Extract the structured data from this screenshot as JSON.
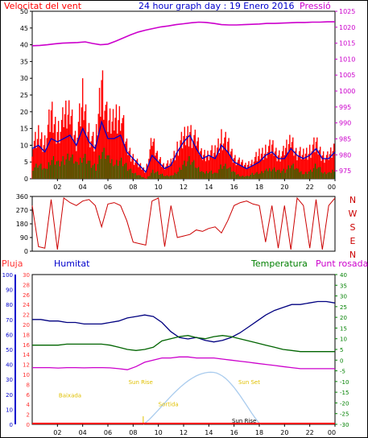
{
  "colors": {
    "background": "#ffffff",
    "frame": "#000000",
    "title": "#0000cc",
    "wind": "#ff0000",
    "wind_avg": "#0000cc",
    "wind_gust": "#008000",
    "pressure": "#cc00cc",
    "direction": "#cc0000",
    "humidity": "#000080",
    "temperature": "#006400",
    "dewpoint": "#cc00cc",
    "rain": "#ff0000",
    "solar": "#aaccee",
    "sun_labels": "#e0c000",
    "rain_axis": "#ff3333",
    "hum_axis": "#0000cc"
  },
  "chart_data": [
    {
      "type": "line",
      "panel": "wind_pressure",
      "title": "24 hour graph day : 19 Enero 2016",
      "left_label": "Velocitat del vent",
      "right_label": "Pressió",
      "y_left_ticks": [
        "0",
        "5",
        "10",
        "15",
        "20",
        "25",
        "30",
        "35",
        "40",
        "45",
        "50"
      ],
      "y_left_range": [
        0,
        50
      ],
      "y_right_ticks": [
        "975",
        "980",
        "985",
        "990",
        "995",
        "1000",
        "1005",
        "1010",
        "1015",
        "1020",
        "1025"
      ],
      "y_right_range": [
        972.5,
        1025
      ],
      "x_ticks": [
        "02",
        "04",
        "06",
        "08",
        "10",
        "12",
        "14",
        "16",
        "18",
        "20",
        "22",
        "00"
      ],
      "pressure": [
        1014.2,
        1014.3,
        1014.5,
        1014.8,
        1015.0,
        1015.1,
        1015.2,
        1015.4,
        1014.9,
        1014.5,
        1014.7,
        1015.6,
        1016.6,
        1017.6,
        1018.5,
        1019.1,
        1019.6,
        1020.1,
        1020.4,
        1020.8,
        1021.1,
        1021.4,
        1021.6,
        1021.5,
        1021.2,
        1020.8,
        1020.7,
        1020.7,
        1020.8,
        1020.9,
        1021.0,
        1021.2,
        1021.2,
        1021.3,
        1021.4,
        1021.5,
        1021.5,
        1021.6,
        1021.6,
        1021.7,
        1021.7
      ],
      "wind_speed_envelope": [
        12,
        16,
        14,
        24,
        18,
        22,
        26,
        15,
        30,
        18,
        12,
        38,
        20,
        23,
        26,
        12,
        8,
        5,
        3,
        14,
        8,
        5,
        6,
        12,
        15,
        18,
        14,
        9,
        10,
        10,
        16,
        13,
        8,
        6,
        5,
        7,
        9,
        11,
        12,
        9,
        10,
        15,
        10,
        9,
        11,
        13,
        9,
        8,
        12
      ],
      "wind_avg": [
        9,
        10,
        8,
        12,
        11,
        12,
        13,
        10,
        15,
        11,
        9,
        17,
        12,
        12,
        13,
        8,
        6,
        4,
        2,
        7,
        5,
        3,
        4,
        8,
        11,
        13,
        9,
        6,
        7,
        6,
        10,
        8,
        5,
        4,
        3,
        4,
        5,
        7,
        8,
        6,
        6,
        9,
        7,
        6,
        7,
        9,
        6,
        6,
        8
      ],
      "wind_gust_low": [
        4,
        5,
        3,
        8,
        6,
        7,
        8,
        5,
        9,
        6,
        4,
        10,
        7,
        6,
        7,
        4,
        2,
        1,
        0,
        3,
        2,
        1,
        1,
        3,
        6,
        7,
        4,
        2,
        3,
        2,
        5,
        4,
        2,
        1,
        1,
        2,
        2,
        3,
        4,
        3,
        3,
        5,
        3,
        2,
        3,
        5,
        2,
        2,
        4
      ]
    },
    {
      "type": "scatter",
      "panel": "wind_direction",
      "y_left_ticks": [
        "0",
        "90",
        "180",
        "270",
        "360"
      ],
      "y_left_range": [
        0,
        360
      ],
      "y_right_labels": [
        "N",
        "W",
        "S",
        "E",
        "N"
      ],
      "direction": [
        300,
        30,
        20,
        340,
        10,
        350,
        320,
        300,
        330,
        340,
        300,
        160,
        310,
        320,
        300,
        200,
        60,
        50,
        40,
        330,
        350,
        30,
        300,
        90,
        100,
        110,
        140,
        130,
        150,
        160,
        120,
        200,
        300,
        320,
        330,
        310,
        300,
        60,
        300,
        20,
        300,
        10,
        350,
        300,
        20,
        340,
        10,
        300,
        350
      ]
    },
    {
      "type": "line",
      "panel": "humidity_temperature",
      "labels": {
        "rain": "Pluja",
        "humidity": "Humitat",
        "temperature": "Temperatura",
        "dewpoint": "Punt rosada"
      },
      "rain_ticks": [
        "0",
        "2",
        "4",
        "6",
        "8",
        "10",
        "12",
        "14",
        "16",
        "18",
        "20",
        "22",
        "24",
        "26",
        "28",
        "30"
      ],
      "rain_range": [
        0,
        30
      ],
      "hum_ticks": [
        "0",
        "10",
        "20",
        "30",
        "40",
        "50",
        "60",
        "70",
        "80",
        "90",
        "100"
      ],
      "hum_range": [
        0,
        100
      ],
      "temp_ticks": [
        "-30",
        "-25",
        "-20",
        "-15",
        "-10",
        "-5",
        "0",
        "5",
        "10",
        "15",
        "20",
        "25",
        "30",
        "35",
        "40"
      ],
      "temp_range": [
        -30,
        40
      ],
      "x_ticks": [
        "02",
        "04",
        "06",
        "08",
        "10",
        "12",
        "14",
        "16",
        "18",
        "20",
        "22",
        "00"
      ],
      "humidity": [
        70,
        70,
        69,
        69,
        68,
        68,
        67,
        67,
        67,
        68,
        69,
        71,
        72,
        73,
        72,
        68,
        62,
        58,
        57,
        58,
        56,
        55,
        56,
        58,
        61,
        65,
        69,
        73,
        76,
        78,
        80,
        80,
        81,
        82,
        82,
        81
      ],
      "temperature": [
        7,
        7,
        7,
        7,
        7.5,
        7.5,
        7.5,
        7.5,
        7.5,
        7,
        6,
        5,
        4.5,
        5,
        6,
        9,
        10,
        11,
        11.5,
        10.5,
        10,
        11,
        11.5,
        11,
        10,
        9,
        8,
        7,
        6,
        5,
        4.5,
        4,
        4,
        4,
        4,
        4
      ],
      "dewpoint": [
        -3.5,
        -3.5,
        -3.5,
        -3.7,
        -3.5,
        -3.5,
        -3.6,
        -3.5,
        -3.5,
        -3.6,
        -4,
        -4.5,
        -3,
        -1,
        0,
        1,
        1,
        1.5,
        1.5,
        1,
        1,
        1,
        0.5,
        0,
        -0.5,
        -1,
        -1.5,
        -2,
        -2.5,
        -3,
        -3.5,
        -4,
        -4,
        -4,
        -4,
        -4
      ],
      "rain": [
        0,
        0,
        0,
        0,
        0,
        0,
        0,
        0,
        0,
        0,
        0,
        0,
        0,
        0,
        0,
        0,
        0,
        0,
        0,
        0,
        0,
        0,
        0,
        0,
        0,
        0,
        0,
        0,
        0,
        0,
        0,
        0,
        0,
        0,
        0,
        0
      ],
      "solar_peak_hour": 14.2,
      "solar_start_hour": 8.8,
      "solar_end_hour": 18.1,
      "solar_peak_humidity_scale": 58,
      "sun_labels": [
        {
          "text": "Baixada",
          "hour": 3.0,
          "level": 18
        },
        {
          "text": "Sun Rise",
          "hour": 8.6,
          "level": 27
        },
        {
          "text": "Sortida",
          "hour": 10.8,
          "level": 12
        },
        {
          "text": "Sun Set",
          "hour": 17.2,
          "level": 27
        },
        {
          "text": "Sun Rise",
          "hour": 16.8,
          "level": -5
        }
      ]
    }
  ]
}
